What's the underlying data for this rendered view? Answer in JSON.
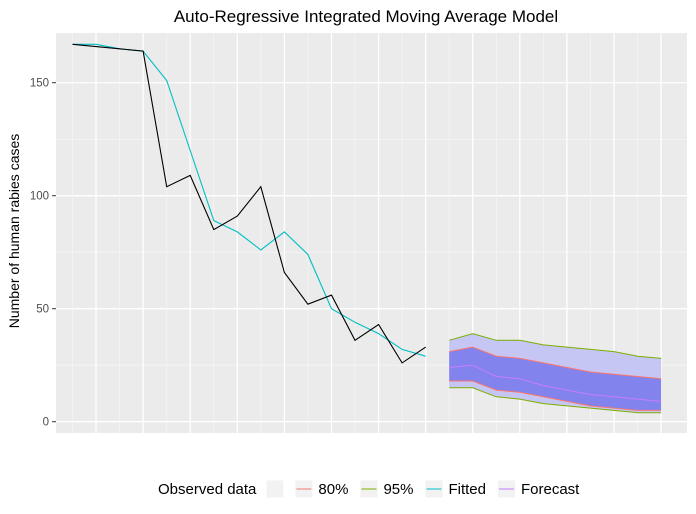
{
  "chart_data": {
    "type": "line",
    "title": "Auto-Regressive Integrated Moving Average Model",
    "xlabel": "",
    "ylabel": "Number of human rabies cases",
    "xlim": [
      0.3,
      27.1
    ],
    "ylim": [
      -5,
      172
    ],
    "y_ticks": [
      0,
      50,
      100,
      150
    ],
    "grid": true,
    "legend_position": "bottom",
    "legend_title": "",
    "legend": [
      {
        "label": "Observed data",
        "color": "#000000"
      },
      {
        "label": "80%",
        "color": "#F8766D"
      },
      {
        "label": "95%",
        "color": "#7CAE00"
      },
      {
        "label": "Fitted",
        "color": "#00BFC4"
      },
      {
        "label": "Forecast",
        "color": "#C77CFF"
      }
    ],
    "observed": {
      "x": [
        1,
        2,
        3,
        4,
        5,
        6,
        7,
        8,
        9,
        10,
        11,
        12,
        13,
        14,
        15,
        16
      ],
      "y": [
        167,
        166,
        165,
        164,
        104,
        109,
        85,
        91,
        104,
        66,
        52,
        56,
        36,
        43,
        26,
        33
      ]
    },
    "fitted": {
      "x": [
        1,
        2,
        3,
        4,
        5,
        6,
        7,
        8,
        9,
        10,
        11,
        12,
        13,
        14,
        15,
        16
      ],
      "y": [
        167,
        167,
        165,
        164,
        151,
        120,
        89,
        84,
        76,
        84,
        74,
        50,
        44,
        39,
        32,
        29
      ]
    },
    "forecast": {
      "x": [
        17,
        18,
        19,
        20,
        21,
        22,
        23,
        24,
        25,
        26
      ],
      "mean": [
        24,
        25,
        20,
        19,
        16,
        14,
        12,
        11,
        10,
        9
      ],
      "lo80": [
        18,
        18,
        14,
        13,
        11,
        9,
        7,
        6,
        5,
        5
      ],
      "hi80": [
        31,
        33,
        29,
        28,
        26,
        24,
        22,
        21,
        20,
        19
      ],
      "lo95": [
        15,
        15,
        11,
        10,
        8,
        7,
        6,
        5,
        4,
        4
      ],
      "hi95": [
        36,
        39,
        36,
        36,
        34,
        33,
        32,
        31,
        29,
        28
      ]
    }
  }
}
